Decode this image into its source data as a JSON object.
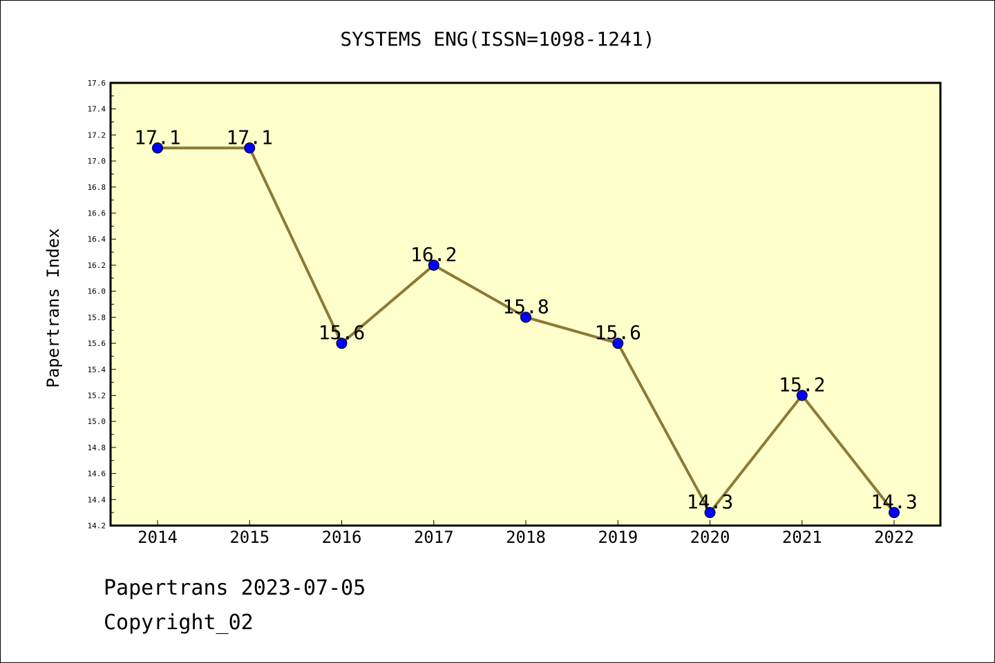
{
  "chart_data": {
    "type": "line",
    "title": "SYSTEMS ENG(ISSN=1098-1241)",
    "xlabel": "",
    "ylabel": "Papertrans Index",
    "categories": [
      "2014",
      "2015",
      "2016",
      "2017",
      "2018",
      "2019",
      "2020",
      "2021",
      "2022"
    ],
    "series": [
      {
        "values": [
          17.1,
          17.1,
          15.6,
          16.2,
          15.8,
          15.6,
          14.3,
          15.2,
          14.3
        ]
      }
    ],
    "data_labels": [
      "17.1",
      "17.1",
      "15.6",
      "16.2",
      "15.8",
      "15.6",
      "14.3",
      "15.2",
      "14.3"
    ],
    "ylim": [
      14.2,
      17.6
    ],
    "yticks": [
      "14.2",
      "14.4",
      "14.6",
      "14.8",
      "15.0",
      "15.2",
      "15.4",
      "15.6",
      "15.8",
      "16.0",
      "16.2",
      "16.4",
      "16.6",
      "16.8",
      "17.0",
      "17.2",
      "17.4",
      "17.6"
    ],
    "grid": false,
    "legend": "none",
    "colors": {
      "plot_background": "#ffffcc",
      "line": "#8c7a34",
      "marker": "#0000ff"
    }
  },
  "footer": {
    "line1": "Papertrans 2023-07-05",
    "line2": "Copyright_02"
  }
}
